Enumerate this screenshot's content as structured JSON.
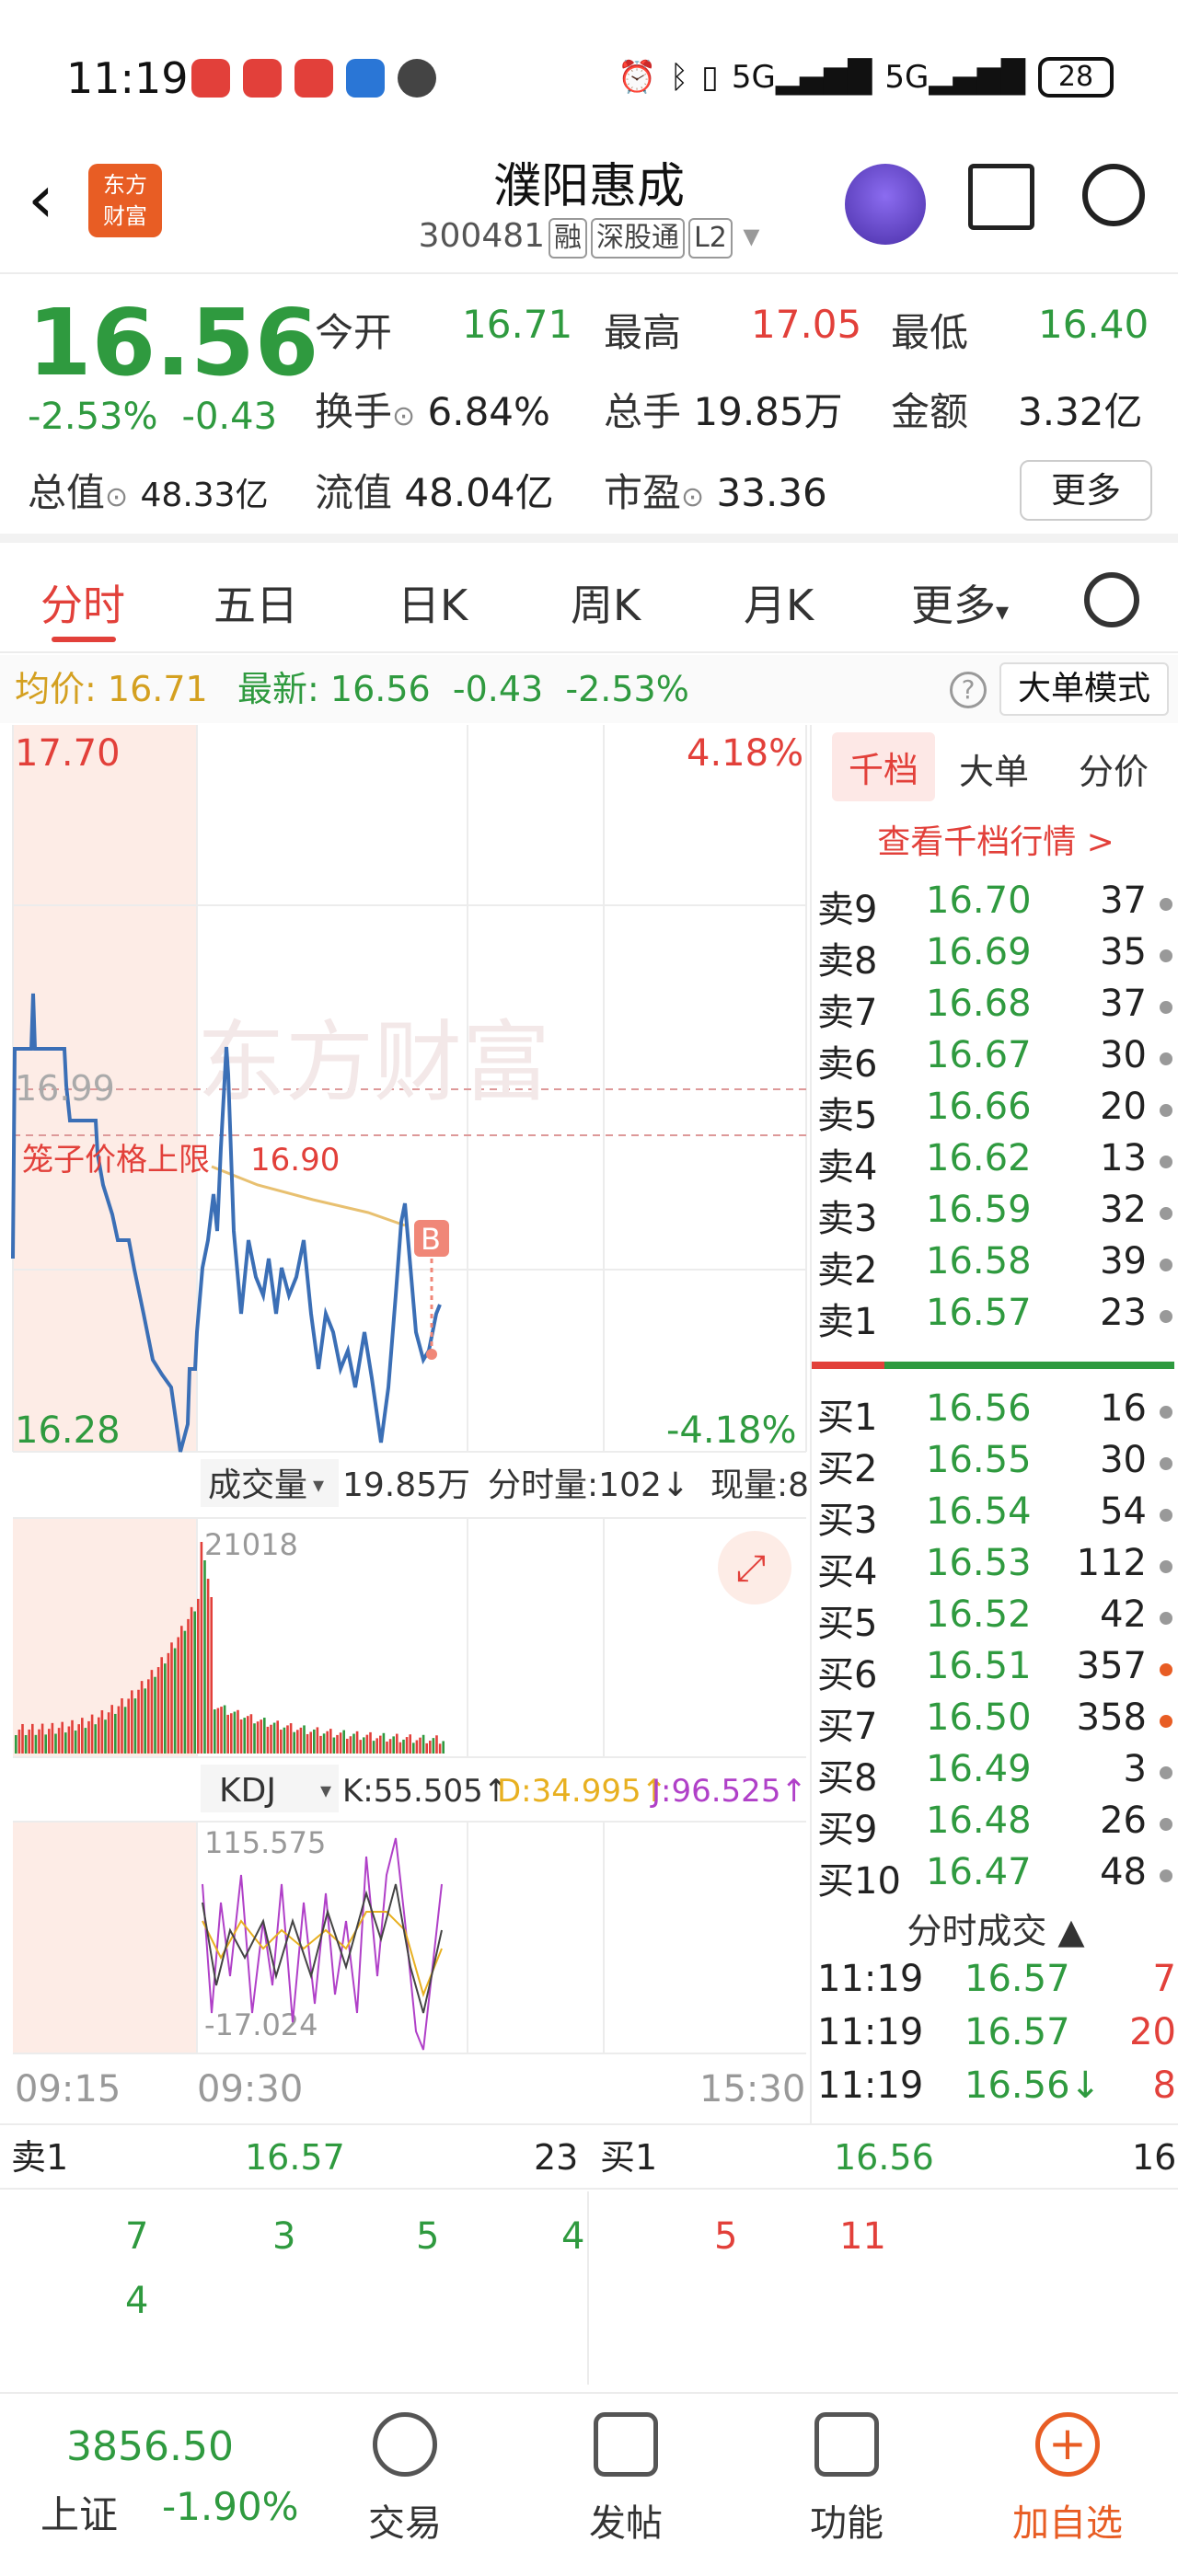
{
  "status": {
    "time": "11:19",
    "battery": "28",
    "signal1": "5G",
    "signal2": "5G"
  },
  "header": {
    "logo_text": "东方\n财富",
    "name": "濮阳惠成",
    "code": "300481",
    "tags": [
      "融",
      "深股通",
      "L2"
    ]
  },
  "quote": {
    "price": "16.56",
    "pct": "-2.53%",
    "chg": "-0.43",
    "rows": [
      [
        {
          "l": "今开",
          "v": "16.71",
          "c": "green"
        },
        {
          "l": "最高",
          "v": "17.05",
          "c": "red"
        },
        {
          "l": "最低",
          "v": "16.40",
          "c": "green"
        }
      ],
      [
        {
          "l": "换手",
          "v": "6.84%",
          "c": "dark"
        },
        {
          "l": "总手",
          "v": "19.85万",
          "c": "dark"
        },
        {
          "l": "金额",
          "v": "3.32亿",
          "c": "dark"
        }
      ],
      [
        {
          "l": "总值",
          "v": "48.33亿",
          "c": "dark"
        },
        {
          "l": "流值",
          "v": "48.04亿",
          "c": "dark"
        },
        {
          "l": "市盈",
          "v": "33.36",
          "c": "dark"
        }
      ]
    ],
    "more": "更多"
  },
  "tabs": [
    "分时",
    "五日",
    "日K",
    "周K",
    "月K",
    "更多"
  ],
  "avgline": {
    "avg_label": "均价:",
    "avg": "16.71",
    "latest_label": "最新:",
    "latest": "16.56",
    "chg": "-0.43",
    "pct": "-2.53%",
    "mode": "大单模式"
  },
  "chart": {
    "high": "17.70",
    "low": "16.28",
    "high_pct": "4.18%",
    "low_pct": "-4.18%",
    "ref_line": "16.99",
    "cage_label": "笼子价格上限",
    "cage_value": "16.90",
    "marker": "B",
    "watermark": "东方财富",
    "vol_label": "成交量",
    "vol_total": "19.85万",
    "vol_tick_label": "分时量:102↓",
    "now_label": "现量:8",
    "vol_max": "21018",
    "kdj_label": "KDJ",
    "kdj_k": "K:55.505↑",
    "kdj_d": "D:34.995↑",
    "kdj_j": "J:96.525↑",
    "kdj_max": "115.575",
    "kdj_min": "-17.024",
    "time_start": "09:15",
    "time_open": "09:30",
    "time_end": "15:30"
  },
  "book": {
    "tabs": [
      "千档",
      "大单",
      "分价"
    ],
    "link": "查看千档行情 >",
    "sells": [
      {
        "label": "卖9",
        "price": "16.70",
        "vol": "37"
      },
      {
        "label": "卖8",
        "price": "16.69",
        "vol": "35"
      },
      {
        "label": "卖7",
        "price": "16.68",
        "vol": "37"
      },
      {
        "label": "卖6",
        "price": "16.67",
        "vol": "30"
      },
      {
        "label": "卖5",
        "price": "16.66",
        "vol": "20"
      },
      {
        "label": "卖4",
        "price": "16.62",
        "vol": "13"
      },
      {
        "label": "卖3",
        "price": "16.59",
        "vol": "32"
      },
      {
        "label": "卖2",
        "price": "16.58",
        "vol": "39"
      },
      {
        "label": "卖1",
        "price": "16.57",
        "vol": "23"
      }
    ],
    "buys": [
      {
        "label": "买1",
        "price": "16.56",
        "vol": "16",
        "dot": "gray"
      },
      {
        "label": "买2",
        "price": "16.55",
        "vol": "30",
        "dot": "gray"
      },
      {
        "label": "买3",
        "price": "16.54",
        "vol": "54",
        "dot": "gray"
      },
      {
        "label": "买4",
        "price": "16.53",
        "vol": "112",
        "dot": "gray"
      },
      {
        "label": "买5",
        "price": "16.52",
        "vol": "42",
        "dot": "gray"
      },
      {
        "label": "买6",
        "price": "16.51",
        "vol": "357",
        "dot": "orange"
      },
      {
        "label": "买7",
        "price": "16.50",
        "vol": "358",
        "dot": "orange"
      },
      {
        "label": "买8",
        "price": "16.49",
        "vol": "3",
        "dot": "gray"
      },
      {
        "label": "买9",
        "price": "16.48",
        "vol": "26",
        "dot": "gray"
      },
      {
        "label": "买10",
        "price": "16.47",
        "vol": "48",
        "dot": "gray"
      }
    ],
    "trades_head": "分时成交 ▲",
    "trades": [
      {
        "time": "11:19",
        "price": "16.57",
        "vol": "7"
      },
      {
        "time": "11:19",
        "price": "16.57",
        "vol": "20"
      },
      {
        "time": "11:19",
        "price": "16.56↓",
        "vol": "8"
      }
    ]
  },
  "strip": {
    "sell_label": "卖1",
    "sell_price": "16.57",
    "sell_vol": "23",
    "buy_label": "买1",
    "buy_price": "16.56",
    "buy_vol": "16"
  },
  "queue": {
    "sell": [
      "7",
      "3",
      "5",
      "4",
      "4"
    ],
    "buy": [
      "5",
      "11"
    ]
  },
  "bottom": {
    "index_value": "3856.50",
    "index_name": "上证",
    "index_chg": "-1.90%",
    "nav": [
      "交易",
      "发帖",
      "功能",
      "加自选"
    ]
  }
}
